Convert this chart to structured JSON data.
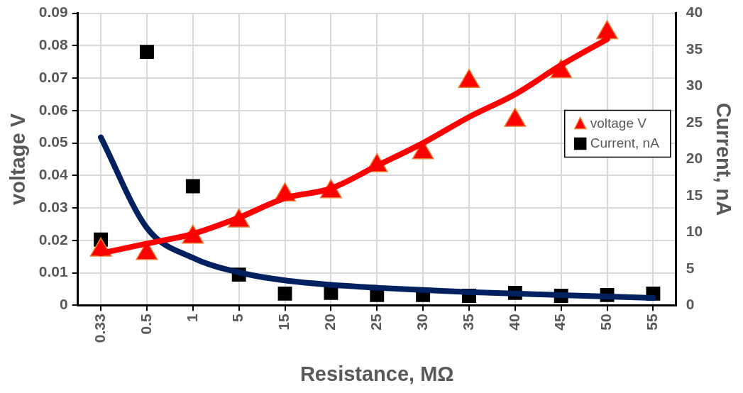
{
  "chart_data": {
    "type": "scatter",
    "xlabel": "Resistance, MΩ",
    "ylabel": "voltage V",
    "y2label": "Current, nA",
    "categories": [
      "0.33",
      "0.5",
      "1",
      "5",
      "15",
      "20",
      "25",
      "30",
      "35",
      "40",
      "45",
      "50",
      "55"
    ],
    "series": [
      {
        "name": "voltage V",
        "marker": "triangle",
        "color": "#ff0000",
        "values": [
          0.017,
          0.016,
          0.021,
          0.026,
          0.034,
          0.035,
          0.043,
          0.047,
          0.069,
          0.057,
          0.072,
          0.084,
          null
        ]
      },
      {
        "name": "Current, nA",
        "marker": "square",
        "axis": "y2",
        "color": "#000000",
        "values": [
          9.0,
          34.7,
          16.3,
          4.2,
          1.6,
          1.7,
          1.4,
          1.4,
          1.3,
          1.7,
          1.3,
          1.4,
          1.6
        ]
      },
      {
        "type": "line",
        "marker": "none",
        "color": "#ff0000",
        "values": [
          0.016,
          0.019,
          0.022,
          0.027,
          0.033,
          0.036,
          0.043,
          0.05,
          0.058,
          0.065,
          0.074,
          0.082,
          null
        ]
      },
      {
        "type": "line",
        "marker": "none",
        "axis": "y2",
        "color": "#002060",
        "values": [
          23,
          10.6,
          6.5,
          4.5,
          3.4,
          2.8,
          2.4,
          2.1,
          1.8,
          1.6,
          1.4,
          1.2,
          1.0
        ]
      }
    ],
    "ylim": [
      0,
      0.09
    ],
    "yticks": [
      0,
      0.01,
      0.02,
      0.03,
      0.04,
      0.05,
      0.06,
      0.07,
      0.08,
      0.09
    ],
    "y2lim": [
      0,
      40
    ],
    "y2ticks": [
      0,
      5,
      10,
      15,
      20,
      25,
      30,
      35,
      40
    ],
    "grid": true,
    "legend": "right"
  }
}
